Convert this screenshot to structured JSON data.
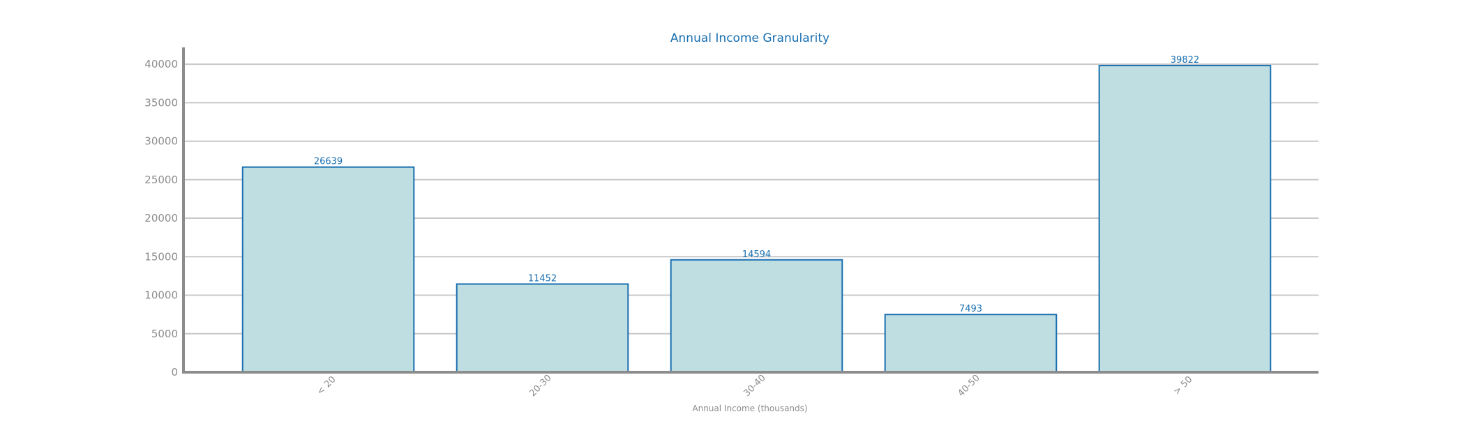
{
  "chart_data": {
    "type": "bar",
    "title": "Annual Income Granularity",
    "xlabel": "Annual Income (thousands)",
    "ylabel": "",
    "categories": [
      "< 20",
      "20-30",
      "30-40",
      "40-50",
      "> 50"
    ],
    "values": [
      26639,
      11452,
      14594,
      7493,
      39822
    ],
    "ylim": [
      0,
      42000
    ],
    "yticks": [
      0,
      5000,
      10000,
      15000,
      20000,
      25000,
      30000,
      35000,
      40000
    ],
    "grid": true,
    "colors": {
      "bar_fill": "#bfdee2",
      "bar_edge": "#1a6fb0",
      "title": "#1a6fb0",
      "data_label": "#1a6fb0",
      "tick_label": "#8c8c8c",
      "axis": "#8c8c8c",
      "grid": "#c8c8c8"
    }
  }
}
